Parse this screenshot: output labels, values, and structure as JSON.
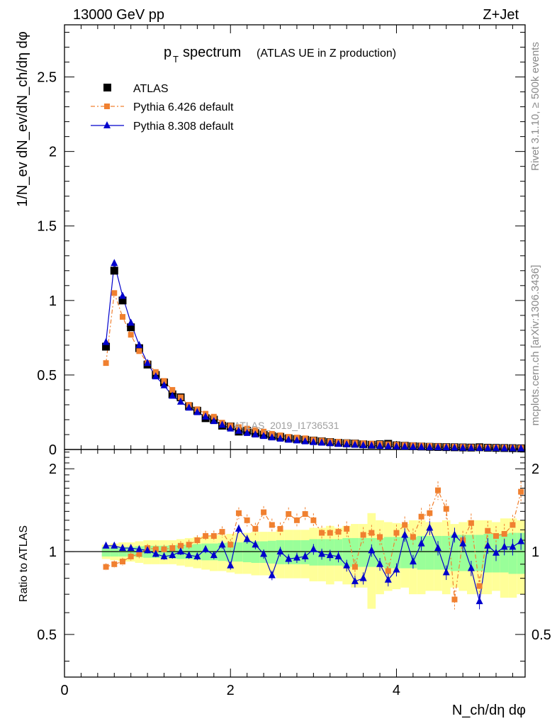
{
  "header": {
    "energy_label": "13000 GeV pp",
    "process_label": "Z+Jet"
  },
  "sidebar": {
    "rivet_label": "Rivet 3.1.10, ≥ 500k events",
    "source_label": "mcplots.cern.ch [arXiv:1306.3436]"
  },
  "chart_data": {
    "type": "line",
    "title_main": "p",
    "title_sub": "T",
    "title_word": "spectrum",
    "title_note": "(ATLAS UE in Z production)",
    "analysis_tag": "ATLAS_2019_I1736531",
    "ylabel_top": "1/N_ev dN_ev/dN_ch/dη dφ",
    "ylabel_bottom": "Ratio to ATLAS",
    "xlabel": "N_ch/dη dφ",
    "xlim": [
      0,
      5.55
    ],
    "ylim_top": [
      0,
      2.85
    ],
    "ylim_bottom": [
      0.35,
      2.35
    ],
    "x_ticks": [
      "0",
      "2",
      "4"
    ],
    "y_ticks_top": [
      "0",
      "0.5",
      "1",
      "1.5",
      "2",
      "2.5"
    ],
    "y_ticks_bottom": [
      "0.5",
      "1",
      "2"
    ],
    "legend": [
      {
        "label": "ATLAS",
        "color": "#000000"
      },
      {
        "label": "Pythia 6.426 default",
        "color": "#f08030"
      },
      {
        "label": "Pythia 8.308 default",
        "color": "#0000cc"
      }
    ],
    "x": [
      0.5,
      0.6,
      0.7,
      0.8,
      0.9,
      1.0,
      1.1,
      1.2,
      1.3,
      1.4,
      1.5,
      1.6,
      1.7,
      1.8,
      1.9,
      2.0,
      2.1,
      2.2,
      2.3,
      2.4,
      2.5,
      2.6,
      2.7,
      2.8,
      2.9,
      3.0,
      3.1,
      3.2,
      3.3,
      3.4,
      3.5,
      3.6,
      3.7,
      3.8,
      3.9,
      4.0,
      4.1,
      4.2,
      4.3,
      4.4,
      4.5,
      4.6,
      4.7,
      4.8,
      4.9,
      5.0,
      5.1,
      5.2,
      5.3,
      5.4,
      5.5
    ],
    "series": [
      {
        "name": "ATLAS",
        "values": [
          0.69,
          1.2,
          1.0,
          0.82,
          0.68,
          0.57,
          0.5,
          0.45,
          0.37,
          0.35,
          0.29,
          0.26,
          0.21,
          0.2,
          0.16,
          0.155,
          0.12,
          0.125,
          0.11,
          0.1,
          0.09,
          0.085,
          0.075,
          0.07,
          0.065,
          0.06,
          0.055,
          0.05,
          0.045,
          0.042,
          0.04,
          0.035,
          0.032,
          0.035,
          0.038,
          0.028,
          0.025,
          0.022,
          0.02,
          0.018,
          0.017,
          0.016,
          0.015,
          0.014,
          0.013,
          0.015,
          0.012,
          0.011,
          0.01,
          0.009,
          0.008
        ]
      },
      {
        "name": "Pythia 6.426 default",
        "values": [
          0.58,
          1.05,
          0.89,
          0.77,
          0.66,
          0.58,
          0.52,
          0.46,
          0.4,
          0.35,
          0.3,
          0.27,
          0.24,
          0.22,
          0.18,
          0.16,
          0.15,
          0.14,
          0.13,
          0.12,
          0.105,
          0.095,
          0.085,
          0.08,
          0.075,
          0.065,
          0.06,
          0.055,
          0.052,
          0.048,
          0.045,
          0.042,
          0.04,
          0.038,
          0.035,
          0.032,
          0.03,
          0.028,
          0.026,
          0.024,
          0.022,
          0.02,
          0.019,
          0.018,
          0.016,
          0.016,
          0.015,
          0.014,
          0.013,
          0.012,
          0.011
        ]
      },
      {
        "name": "Pythia 8.308 default",
        "values": [
          0.72,
          1.25,
          1.03,
          0.85,
          0.7,
          0.58,
          0.49,
          0.43,
          0.36,
          0.32,
          0.28,
          0.25,
          0.22,
          0.19,
          0.165,
          0.14,
          0.125,
          0.11,
          0.1,
          0.09,
          0.08,
          0.072,
          0.065,
          0.06,
          0.054,
          0.049,
          0.045,
          0.041,
          0.037,
          0.034,
          0.031,
          0.028,
          0.026,
          0.024,
          0.022,
          0.02,
          0.019,
          0.017,
          0.016,
          0.015,
          0.014,
          0.013,
          0.012,
          0.011,
          0.01,
          0.01,
          0.009,
          0.009,
          0.008,
          0.008,
          0.007
        ]
      }
    ],
    "ratio_series": [
      {
        "name": "Pythia 6.426 default",
        "values": [
          0.88,
          0.9,
          0.92,
          0.96,
          0.98,
          1.03,
          1.02,
          1.02,
          1.03,
          1.05,
          1.06,
          1.1,
          1.14,
          1.14,
          1.18,
          1.06,
          1.38,
          1.3,
          1.21,
          1.39,
          1.25,
          1.21,
          1.37,
          1.3,
          1.37,
          1.3,
          1.17,
          1.17,
          1.18,
          1.21,
          0.88,
          1.15,
          1.17,
          1.13,
          0.85,
          1.17,
          1.25,
          1.13,
          1.34,
          1.38,
          1.67,
          1.43,
          0.67,
          1.1,
          1.27,
          0.75,
          1.19,
          1.14,
          1.16,
          1.25,
          1.65
        ]
      },
      {
        "name": "Pythia 8.308 default",
        "values": [
          1.05,
          1.05,
          1.03,
          1.03,
          1.02,
          1.01,
          0.98,
          0.96,
          0.97,
          1.0,
          0.97,
          0.96,
          1.02,
          0.97,
          1.06,
          0.89,
          1.21,
          1.11,
          1.06,
          0.98,
          0.82,
          1.0,
          0.94,
          0.95,
          0.96,
          1.02,
          0.98,
          0.97,
          0.96,
          0.89,
          0.78,
          0.8,
          1.01,
          0.9,
          0.79,
          0.86,
          1.15,
          0.92,
          1.07,
          1.22,
          1.03,
          0.84,
          1.15,
          1.07,
          0.87,
          0.66,
          1.05,
          0.99,
          1.04,
          1.04,
          1.09
        ]
      }
    ],
    "band_inner_halfwidth": [
      0.04,
      0.04,
      0.04,
      0.04,
      0.045,
      0.05,
      0.05,
      0.05,
      0.055,
      0.06,
      0.06,
      0.065,
      0.07,
      0.07,
      0.075,
      0.08,
      0.08,
      0.085,
      0.09,
      0.09,
      0.095,
      0.1,
      0.1,
      0.1,
      0.1,
      0.11,
      0.11,
      0.11,
      0.11,
      0.12,
      0.12,
      0.12,
      0.12,
      0.12,
      0.13,
      0.13,
      0.13,
      0.13,
      0.14,
      0.14,
      0.14,
      0.14,
      0.15,
      0.15,
      0.15,
      0.15,
      0.16,
      0.16,
      0.16,
      0.17,
      0.17
    ],
    "band_outer_halfwidth": [
      0.06,
      0.07,
      0.08,
      0.08,
      0.09,
      0.1,
      0.1,
      0.1,
      0.1,
      0.11,
      0.12,
      0.13,
      0.14,
      0.15,
      0.15,
      0.16,
      0.17,
      0.17,
      0.18,
      0.18,
      0.18,
      0.2,
      0.2,
      0.2,
      0.2,
      0.22,
      0.22,
      0.24,
      0.22,
      0.24,
      0.26,
      0.26,
      0.38,
      0.3,
      0.28,
      0.27,
      0.26,
      0.3,
      0.3,
      0.28,
      0.28,
      0.3,
      0.26,
      0.28,
      0.3,
      0.3,
      0.3,
      0.28,
      0.32,
      0.32,
      0.3
    ]
  }
}
